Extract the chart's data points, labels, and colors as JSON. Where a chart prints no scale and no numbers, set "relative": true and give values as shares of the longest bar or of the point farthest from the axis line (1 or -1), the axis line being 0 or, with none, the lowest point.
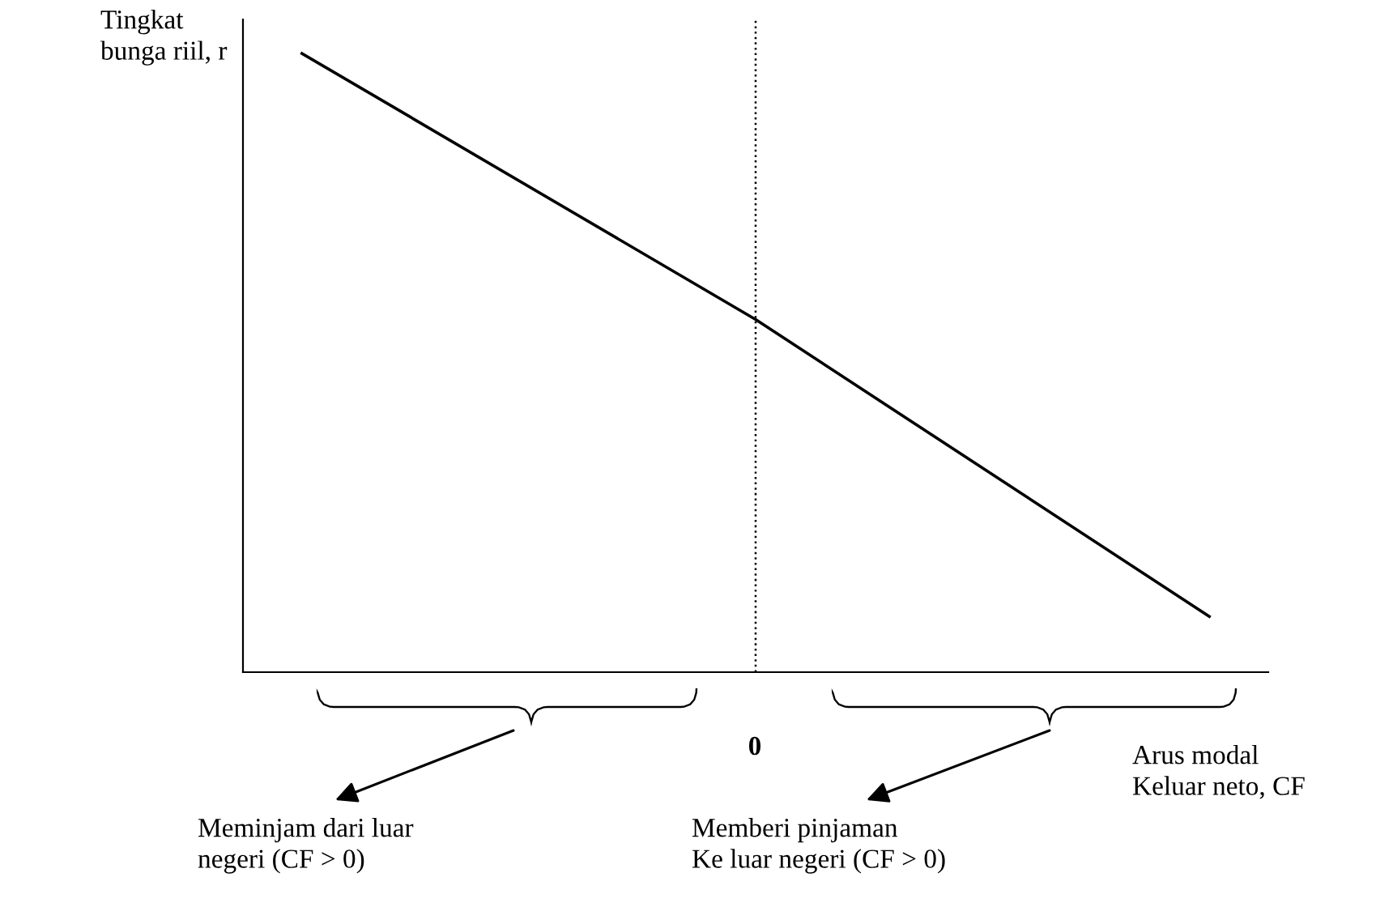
{
  "chart_data": {
    "type": "line",
    "relative": true,
    "ylabel": "Tingkat\nbunga riil, r",
    "xlabel": "Arus modal\nKeluar neto, CF",
    "categories": [
      null,
      null,
      null
    ],
    "series": [
      {
        "color": "#000000",
        "values": [
          1,
          0.57,
          0.09
        ]
      }
    ],
    "annotations": [
      "0",
      "Meminjam dari luar\nnegeri (CF > 0)",
      "Memberi pinjaman\nKe luar negeri (CF > 0)"
    ],
    "grid": false,
    "legend": false,
    "marker": "none",
    "line_style": "solid"
  }
}
